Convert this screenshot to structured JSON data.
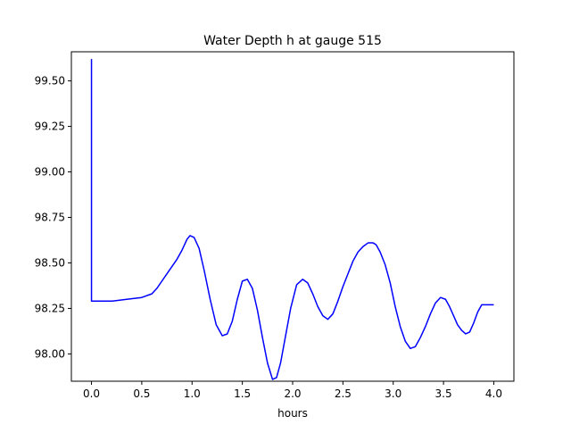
{
  "chart_data": {
    "type": "line",
    "title": "Water Depth h at gauge 515",
    "xlabel": "hours",
    "ylabel": "",
    "xlim": [
      -0.2,
      4.2
    ],
    "ylim": [
      97.85,
      99.66
    ],
    "xticks": [
      0.0,
      0.5,
      1.0,
      1.5,
      2.0,
      2.5,
      3.0,
      3.5,
      4.0
    ],
    "xtick_labels": [
      "0.0",
      "0.5",
      "1.0",
      "1.5",
      "2.0",
      "2.5",
      "3.0",
      "3.5",
      "4.0"
    ],
    "yticks": [
      98.0,
      98.25,
      98.5,
      98.75,
      99.0,
      99.25,
      99.5
    ],
    "ytick_labels": [
      "98.00",
      "98.25",
      "98.50",
      "98.75",
      "99.00",
      "99.25",
      "99.50"
    ],
    "grid": false,
    "series": [
      {
        "color": "#0000ff",
        "x": [
          0.0,
          0.0,
          0.05,
          0.2,
          0.35,
          0.5,
          0.6,
          0.65,
          0.7,
          0.75,
          0.8,
          0.85,
          0.9,
          0.95,
          0.98,
          1.02,
          1.07,
          1.12,
          1.18,
          1.24,
          1.3,
          1.35,
          1.4,
          1.45,
          1.5,
          1.55,
          1.6,
          1.65,
          1.7,
          1.75,
          1.8,
          1.84,
          1.88,
          1.93,
          1.98,
          2.04,
          2.1,
          2.15,
          2.2,
          2.25,
          2.3,
          2.35,
          2.4,
          2.45,
          2.5,
          2.55,
          2.6,
          2.65,
          2.7,
          2.75,
          2.8,
          2.83,
          2.87,
          2.92,
          2.97,
          3.02,
          3.07,
          3.12,
          3.17,
          3.22,
          3.27,
          3.32,
          3.37,
          3.42,
          3.47,
          3.52,
          3.56,
          3.6,
          3.64,
          3.68,
          3.72,
          3.76,
          3.8,
          3.84,
          3.88,
          3.92,
          3.96,
          4.0
        ],
        "y": [
          99.62,
          98.29,
          98.29,
          98.29,
          98.3,
          98.31,
          98.33,
          98.36,
          98.4,
          98.44,
          98.48,
          98.52,
          98.57,
          98.63,
          98.65,
          98.64,
          98.58,
          98.46,
          98.3,
          98.16,
          98.1,
          98.11,
          98.18,
          98.3,
          98.4,
          98.41,
          98.36,
          98.24,
          98.09,
          97.95,
          97.86,
          97.87,
          97.95,
          98.1,
          98.25,
          98.38,
          98.41,
          98.39,
          98.33,
          98.26,
          98.21,
          98.19,
          98.22,
          98.29,
          98.37,
          98.44,
          98.51,
          98.56,
          98.59,
          98.61,
          98.61,
          98.6,
          98.56,
          98.49,
          98.39,
          98.26,
          98.15,
          98.07,
          98.03,
          98.04,
          98.09,
          98.15,
          98.22,
          98.28,
          98.31,
          98.3,
          98.26,
          98.21,
          98.16,
          98.13,
          98.11,
          98.12,
          98.17,
          98.23,
          98.27,
          98.27,
          98.27,
          98.27
        ]
      }
    ]
  }
}
